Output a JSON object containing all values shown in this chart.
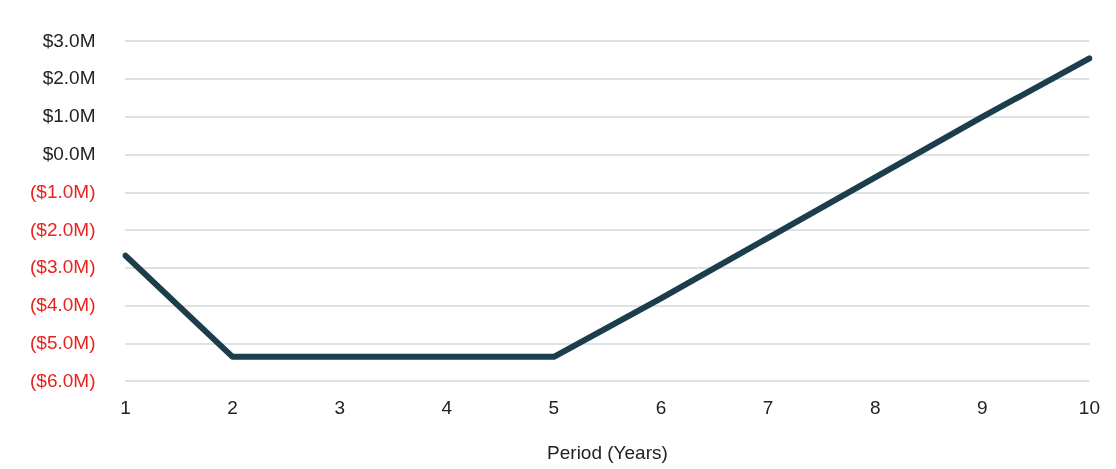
{
  "chart_data": {
    "type": "line",
    "xlabel": "Period (Years)",
    "categories": [
      "1",
      "2",
      "3",
      "4",
      "5",
      "6",
      "7",
      "8",
      "9",
      "10"
    ],
    "series": [
      {
        "color": "#1c3d4c",
        "values": [
          -2.67,
          -5.35,
          -5.35,
          -5.35,
          -5.35,
          -3.8,
          -2.2,
          -0.6,
          1.0,
          2.55
        ]
      }
    ],
    "ylim": [
      -6,
      3
    ],
    "yticks": [
      {
        "value": -6,
        "label": "($6.0M)"
      },
      {
        "value": -5,
        "label": "($5.0M)"
      },
      {
        "value": -4,
        "label": "($4.0M)"
      },
      {
        "value": -3,
        "label": "($3.0M)"
      },
      {
        "value": -2,
        "label": "($2.0M)"
      },
      {
        "value": -1,
        "label": "($1.0M)"
      },
      {
        "value": 0,
        "label": "$0.0M"
      },
      {
        "value": 1,
        "label": "$1.0M"
      },
      {
        "value": 2,
        "label": "$2.0M"
      },
      {
        "value": 3,
        "label": "$3.0M"
      }
    ],
    "grid": "y",
    "legend": false,
    "marker": "none",
    "line_style": "solid"
  }
}
